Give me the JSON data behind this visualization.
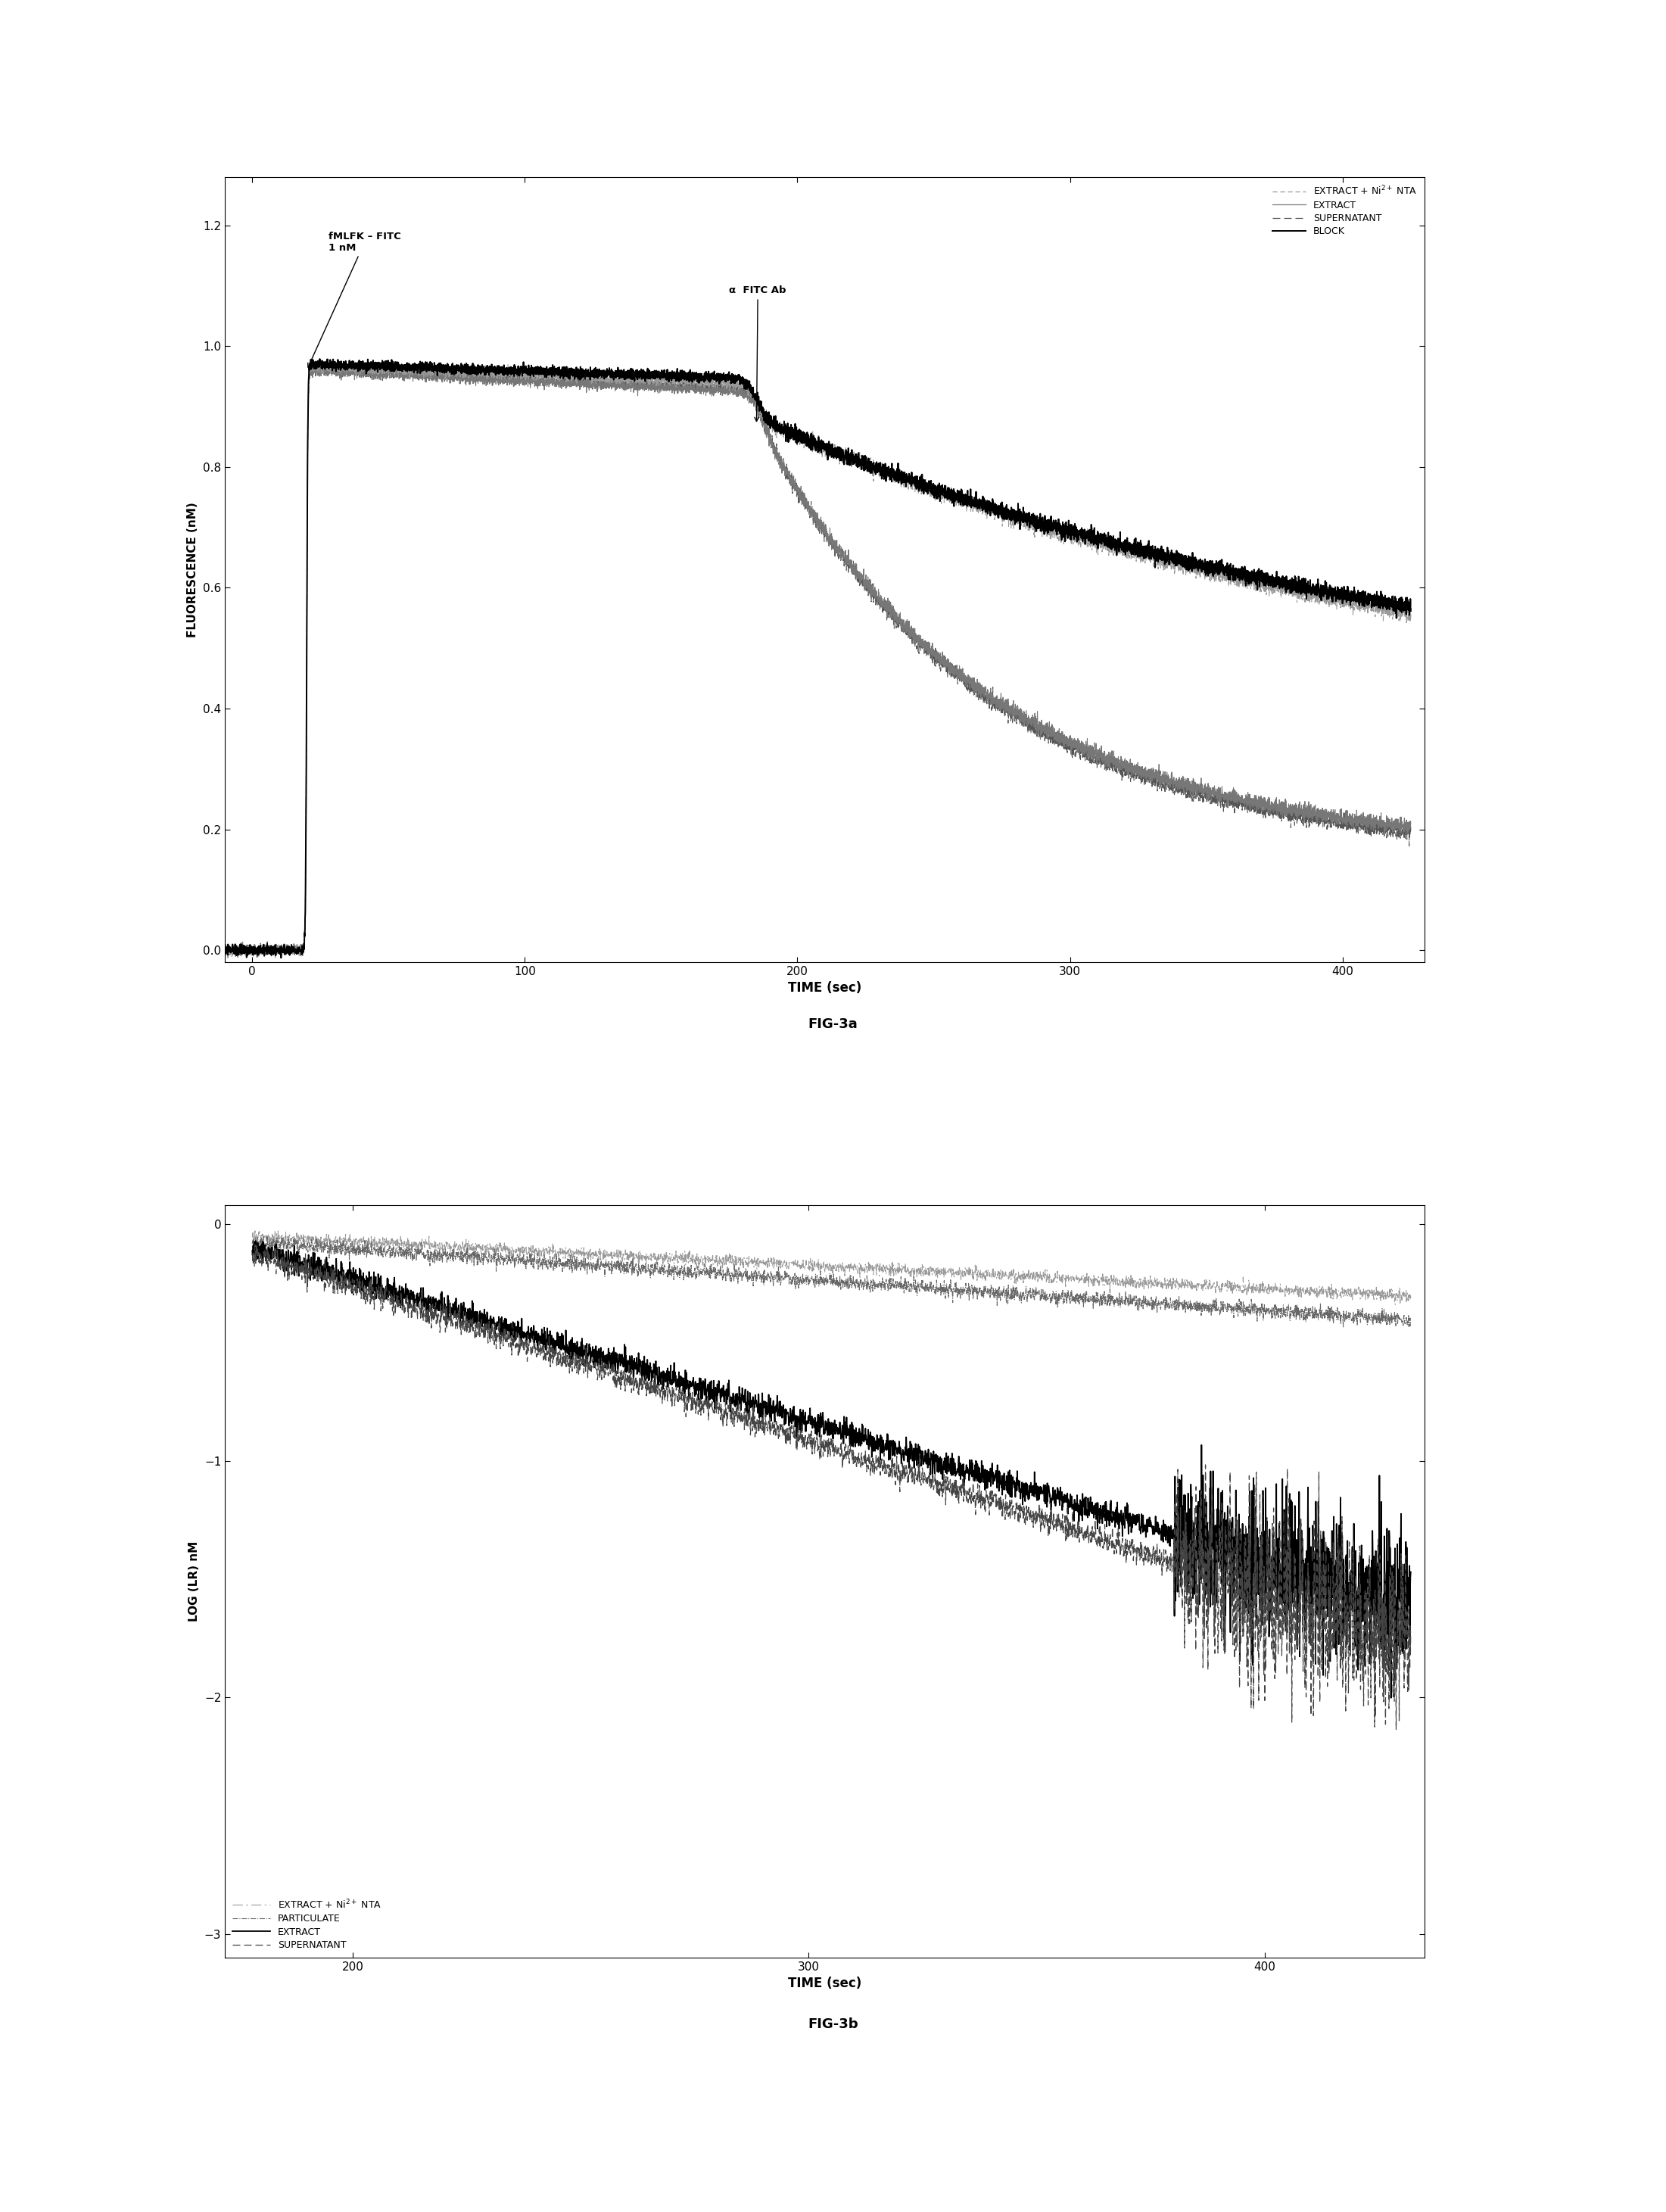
{
  "fig3a": {
    "xlabel": "TIME (sec)",
    "ylabel": "FLUORESCENCE (nM)",
    "xlim": [
      -10,
      430
    ],
    "ylim": [
      -0.02,
      1.28
    ],
    "yticks": [
      0.0,
      0.2,
      0.4,
      0.6,
      0.8,
      1.0,
      1.2
    ],
    "xticks": [
      0,
      100,
      200,
      300,
      400
    ],
    "inject_t": 20,
    "antibody_t": 185
  },
  "fig3b": {
    "xlabel": "TIME (sec)",
    "ylabel": "LOG (LR) nM",
    "xlim": [
      172,
      435
    ],
    "ylim": [
      -3.1,
      0.08
    ],
    "yticks": [
      0,
      -1,
      -2,
      -3
    ],
    "xticks": [
      200,
      300,
      400
    ],
    "t_start": 178,
    "t_end": 432
  },
  "title3a": "FIG-3a",
  "title3b": "FIG-3b",
  "background_color": "#ffffff"
}
